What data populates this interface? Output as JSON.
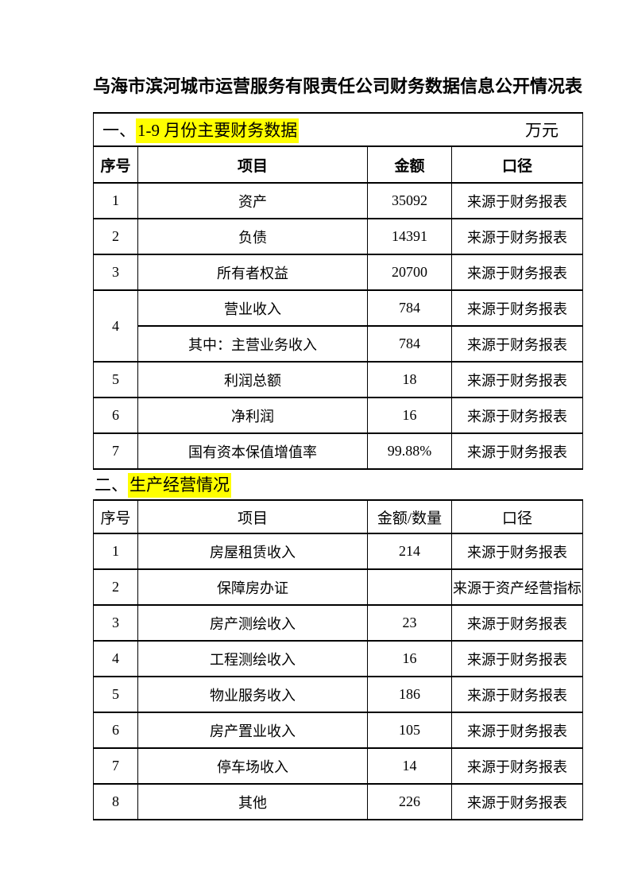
{
  "doc": {
    "title": "乌海市滨河城市运营服务有限责任公司财务数据信息公开情况表"
  },
  "section1": {
    "prefix": "一、",
    "heading": "1-9 月份主要财务数据",
    "unit": "万元"
  },
  "table1": {
    "headers": [
      "序号",
      "项目",
      "金额",
      "口径"
    ],
    "rows": [
      {
        "no": "1",
        "item": "资产",
        "amount": "35092",
        "caliber": "来源于财务报表"
      },
      {
        "no": "2",
        "item": "负债",
        "amount": "14391",
        "caliber": "来源于财务报表"
      },
      {
        "no": "3",
        "item": "所有者权益",
        "amount": "20700",
        "caliber": "来源于财务报表"
      },
      {
        "no": "4",
        "item": "营业收入",
        "amount": "784",
        "caliber": "来源于财务报表"
      },
      {
        "no": "",
        "item": "其中：主营业务收入",
        "amount": "784",
        "caliber": "来源于财务报表"
      },
      {
        "no": "5",
        "item": "利润总额",
        "amount": "18",
        "caliber": "来源于财务报表"
      },
      {
        "no": "6",
        "item": "净利润",
        "amount": "16",
        "caliber": "来源于财务报表"
      },
      {
        "no": "7",
        "item": "国有资本保值增值率",
        "amount": "99.88%",
        "caliber": "来源于财务报表"
      }
    ]
  },
  "section2": {
    "prefix": "二、",
    "heading": "生产经营情况"
  },
  "table2": {
    "headers": [
      "序号",
      "项目",
      "金额/数量",
      "口径"
    ],
    "rows": [
      {
        "no": "1",
        "item": "房屋租赁收入",
        "amount": "214",
        "caliber": "来源于财务报表"
      },
      {
        "no": "2",
        "item": "保障房办证",
        "amount": "",
        "caliber": "来源于资产经营指标"
      },
      {
        "no": "3",
        "item": "房产测绘收入",
        "amount": "23",
        "caliber": "来源于财务报表"
      },
      {
        "no": "4",
        "item": "工程测绘收入",
        "amount": "16",
        "caliber": "来源于财务报表"
      },
      {
        "no": "5",
        "item": "物业服务收入",
        "amount": "186",
        "caliber": "来源于财务报表"
      },
      {
        "no": "6",
        "item": "房产置业收入",
        "amount": "105",
        "caliber": "来源于财务报表"
      },
      {
        "no": "7",
        "item": "停车场收入",
        "amount": "14",
        "caliber": "来源于财务报表"
      },
      {
        "no": "8",
        "item": "其他",
        "amount": "226",
        "caliber": "来源于财务报表"
      }
    ]
  },
  "colors": {
    "highlight": "#ffff00",
    "text": "#000000",
    "border": "#000000",
    "page_bg": "#ffffff"
  }
}
